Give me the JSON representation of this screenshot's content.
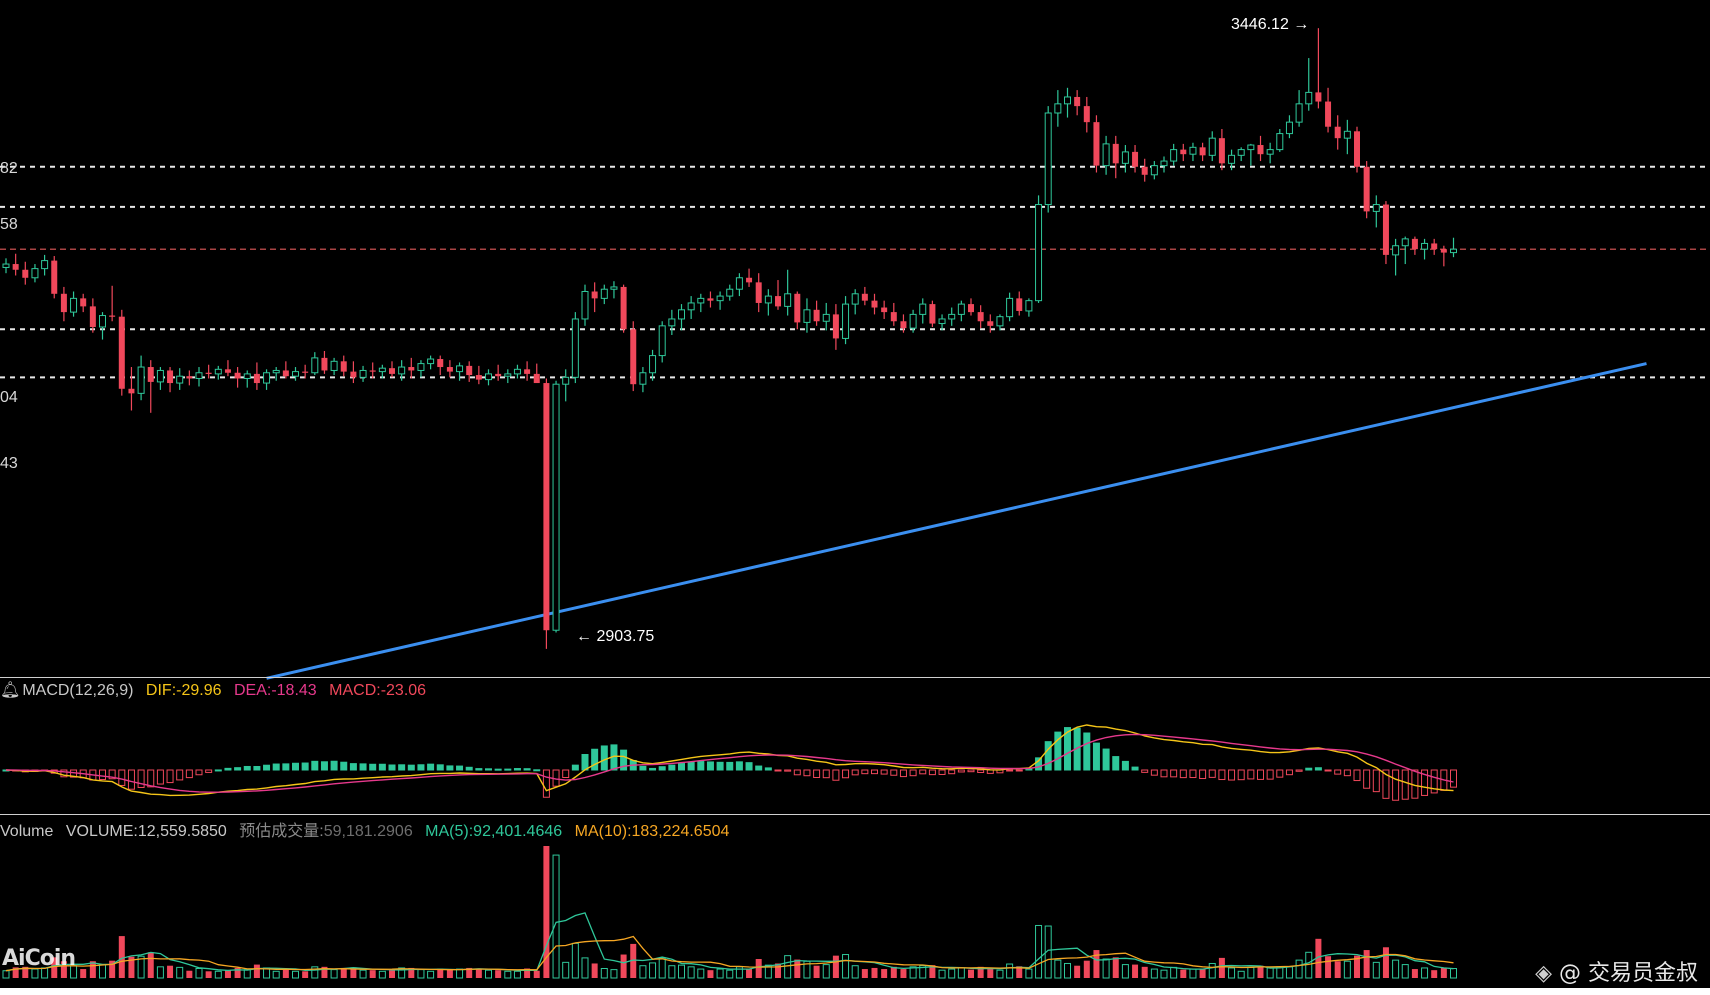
{
  "chart_data": {
    "type": "candlestick",
    "price_axis": {
      "visible_tick_labels": [
        "82",
        "58",
        "04",
        "43"
      ],
      "levels_white_dashed": [
        3325,
        3290,
        3183,
        3141
      ],
      "level_red_dashed": 3253,
      "range": [
        2880,
        3462
      ]
    },
    "annotations": [
      {
        "text": "3446.12 →",
        "price": 3446.12,
        "candle_index": 130
      },
      {
        "text": "← 2903.75",
        "price": 2903.75,
        "candle_index": 56
      }
    ],
    "trendline": {
      "color": "#3b8ff0",
      "from": {
        "candle_index": 27,
        "price": 2878
      },
      "to": {
        "candle_index": 170,
        "price": 3153
      }
    },
    "candles": [
      [
        3237,
        3245,
        3232,
        3240
      ],
      [
        3240,
        3249,
        3230,
        3235
      ],
      [
        3235,
        3242,
        3222,
        3228
      ],
      [
        3228,
        3240,
        3224,
        3236
      ],
      [
        3236,
        3248,
        3230,
        3243
      ],
      [
        3243,
        3247,
        3210,
        3214
      ],
      [
        3214,
        3220,
        3190,
        3198
      ],
      [
        3198,
        3216,
        3194,
        3210
      ],
      [
        3210,
        3214,
        3198,
        3203
      ],
      [
        3203,
        3210,
        3180,
        3185
      ],
      [
        3185,
        3198,
        3174,
        3195
      ],
      [
        3195,
        3221,
        3190,
        3194
      ],
      [
        3194,
        3200,
        3125,
        3131
      ],
      [
        3131,
        3150,
        3112,
        3127
      ],
      [
        3127,
        3160,
        3121,
        3150
      ],
      [
        3150,
        3156,
        3110,
        3137
      ],
      [
        3137,
        3150,
        3130,
        3147
      ],
      [
        3147,
        3150,
        3128,
        3136
      ],
      [
        3136,
        3149,
        3130,
        3142
      ],
      [
        3142,
        3147,
        3134,
        3140
      ],
      [
        3140,
        3150,
        3133,
        3145
      ],
      [
        3145,
        3152,
        3140,
        3144
      ],
      [
        3144,
        3151,
        3139,
        3148
      ],
      [
        3148,
        3156,
        3142,
        3145
      ],
      [
        3145,
        3150,
        3132,
        3140
      ],
      [
        3140,
        3147,
        3132,
        3144
      ],
      [
        3144,
        3154,
        3130,
        3136
      ],
      [
        3136,
        3148,
        3130,
        3145
      ],
      [
        3145,
        3150,
        3138,
        3147
      ],
      [
        3147,
        3155,
        3140,
        3142
      ],
      [
        3142,
        3150,
        3138,
        3146
      ],
      [
        3146,
        3152,
        3140,
        3145
      ],
      [
        3145,
        3163,
        3143,
        3158
      ],
      [
        3158,
        3164,
        3144,
        3147
      ],
      [
        3147,
        3158,
        3143,
        3155
      ],
      [
        3155,
        3160,
        3142,
        3146
      ],
      [
        3146,
        3155,
        3136,
        3141
      ],
      [
        3141,
        3151,
        3137,
        3147
      ],
      [
        3147,
        3154,
        3140,
        3146
      ],
      [
        3146,
        3152,
        3140,
        3149
      ],
      [
        3149,
        3155,
        3141,
        3144
      ],
      [
        3144,
        3156,
        3138,
        3150
      ],
      [
        3150,
        3158,
        3140,
        3147
      ],
      [
        3147,
        3156,
        3141,
        3153
      ],
      [
        3153,
        3160,
        3148,
        3157
      ],
      [
        3157,
        3160,
        3143,
        3150
      ],
      [
        3150,
        3156,
        3141,
        3146
      ],
      [
        3146,
        3154,
        3138,
        3151
      ],
      [
        3151,
        3155,
        3137,
        3143
      ],
      [
        3143,
        3151,
        3135,
        3139
      ],
      [
        3139,
        3148,
        3134,
        3144
      ],
      [
        3144,
        3152,
        3138,
        3142
      ],
      [
        3142,
        3148,
        3136,
        3144
      ],
      [
        3144,
        3152,
        3140,
        3148
      ],
      [
        3148,
        3155,
        3138,
        3144
      ],
      [
        3144,
        3153,
        3140,
        3136
      ],
      [
        3136,
        3140,
        2903.75,
        2920
      ],
      [
        2920,
        3138,
        2918,
        3135
      ],
      [
        3135,
        3148,
        3120,
        3141
      ],
      [
        3141,
        3198,
        3136,
        3192
      ],
      [
        3192,
        3222,
        3186,
        3216
      ],
      [
        3216,
        3224,
        3198,
        3210
      ],
      [
        3210,
        3222,
        3205,
        3218
      ],
      [
        3218,
        3225,
        3210,
        3220
      ],
      [
        3220,
        3222,
        3180,
        3183
      ],
      [
        3183,
        3190,
        3129,
        3135
      ],
      [
        3135,
        3150,
        3128,
        3145
      ],
      [
        3145,
        3165,
        3138,
        3160
      ],
      [
        3160,
        3190,
        3154,
        3186
      ],
      [
        3186,
        3200,
        3178,
        3192
      ],
      [
        3192,
        3205,
        3182,
        3200
      ],
      [
        3200,
        3212,
        3192,
        3206
      ],
      [
        3206,
        3214,
        3198,
        3210
      ],
      [
        3210,
        3216,
        3202,
        3208
      ],
      [
        3208,
        3216,
        3200,
        3212
      ],
      [
        3212,
        3222,
        3208,
        3218
      ],
      [
        3218,
        3232,
        3212,
        3228
      ],
      [
        3228,
        3236,
        3220,
        3224
      ],
      [
        3224,
        3232,
        3198,
        3206
      ],
      [
        3206,
        3218,
        3195,
        3212
      ],
      [
        3212,
        3226,
        3200,
        3203
      ],
      [
        3203,
        3235,
        3195,
        3214
      ],
      [
        3214,
        3216,
        3183,
        3189
      ],
      [
        3189,
        3210,
        3180,
        3200
      ],
      [
        3200,
        3208,
        3186,
        3190
      ],
      [
        3190,
        3206,
        3182,
        3196
      ],
      [
        3196,
        3205,
        3165,
        3175
      ],
      [
        3175,
        3212,
        3170,
        3205
      ],
      [
        3205,
        3218,
        3196,
        3214
      ],
      [
        3214,
        3220,
        3204,
        3208
      ],
      [
        3208,
        3214,
        3196,
        3202
      ],
      [
        3202,
        3208,
        3192,
        3198
      ],
      [
        3198,
        3206,
        3186,
        3190
      ],
      [
        3190,
        3196,
        3180,
        3184
      ],
      [
        3184,
        3200,
        3180,
        3196
      ],
      [
        3196,
        3210,
        3188,
        3205
      ],
      [
        3205,
        3208,
        3185,
        3188
      ],
      [
        3188,
        3196,
        3182,
        3192
      ],
      [
        3192,
        3202,
        3186,
        3196
      ],
      [
        3196,
        3208,
        3190,
        3205
      ],
      [
        3205,
        3210,
        3195,
        3198
      ],
      [
        3198,
        3204,
        3184,
        3190
      ],
      [
        3190,
        3196,
        3180,
        3186
      ],
      [
        3186,
        3196,
        3182,
        3194
      ],
      [
        3194,
        3215,
        3190,
        3210
      ],
      [
        3210,
        3216,
        3195,
        3199
      ],
      [
        3199,
        3210,
        3194,
        3208
      ],
      [
        3208,
        3300,
        3206,
        3292
      ],
      [
        3292,
        3378,
        3285,
        3372
      ],
      [
        3372,
        3392,
        3360,
        3380
      ],
      [
        3380,
        3394,
        3368,
        3386
      ],
      [
        3386,
        3392,
        3370,
        3378
      ],
      [
        3378,
        3386,
        3355,
        3364
      ],
      [
        3364,
        3370,
        3320,
        3326
      ],
      [
        3326,
        3352,
        3318,
        3345
      ],
      [
        3345,
        3352,
        3315,
        3328
      ],
      [
        3328,
        3344,
        3320,
        3338
      ],
      [
        3338,
        3344,
        3320,
        3325
      ],
      [
        3325,
        3332,
        3312,
        3318
      ],
      [
        3318,
        3330,
        3314,
        3326
      ],
      [
        3326,
        3334,
        3320,
        3330
      ],
      [
        3330,
        3345,
        3326,
        3340
      ],
      [
        3340,
        3345,
        3330,
        3336
      ],
      [
        3336,
        3346,
        3330,
        3342
      ],
      [
        3342,
        3346,
        3330,
        3335
      ],
      [
        3335,
        3356,
        3330,
        3350
      ],
      [
        3350,
        3358,
        3322,
        3328
      ],
      [
        3328,
        3340,
        3322,
        3335
      ],
      [
        3335,
        3342,
        3330,
        3340
      ],
      [
        3340,
        3345,
        3326,
        3344
      ],
      [
        3344,
        3352,
        3330,
        3336
      ],
      [
        3336,
        3346,
        3328,
        3340
      ],
      [
        3340,
        3358,
        3338,
        3354
      ],
      [
        3354,
        3370,
        3350,
        3364
      ],
      [
        3364,
        3392,
        3360,
        3380
      ],
      [
        3380,
        3420,
        3374,
        3390
      ],
      [
        3390,
        3446.12,
        3376,
        3382
      ],
      [
        3382,
        3394,
        3355,
        3360
      ],
      [
        3360,
        3370,
        3340,
        3350
      ],
      [
        3350,
        3366,
        3336,
        3356
      ],
      [
        3356,
        3360,
        3320,
        3325
      ],
      [
        3325,
        3330,
        3280,
        3286
      ],
      [
        3286,
        3300,
        3272,
        3292
      ],
      [
        3292,
        3295,
        3240,
        3248
      ],
      [
        3248,
        3262,
        3230,
        3256
      ],
      [
        3256,
        3264,
        3240,
        3262
      ],
      [
        3262,
        3264,
        3248,
        3253
      ],
      [
        3253,
        3262,
        3244,
        3258
      ],
      [
        3258,
        3262,
        3248,
        3253
      ],
      [
        3253,
        3256,
        3238,
        3250
      ],
      [
        3250,
        3263,
        3246,
        3253
      ]
    ],
    "macd": {
      "label": "MACD(12,26,9)",
      "dif_label": "DIF:-29.96",
      "dea_label": "DEA:-18.43",
      "macd_label": "MACD:-23.06",
      "colors": {
        "dif": "#f5c518",
        "dea": "#e6398c",
        "up": "#2fc79a",
        "down": "#f0485b"
      }
    },
    "volume": {
      "label": "Volume",
      "volume_label": "VOLUME:12,559.5850",
      "est_label": "预估成交量:",
      "est_value": "59,181.2906",
      "ma5_label": "MA(5):92,401.4646",
      "ma10_label": "MA(10):183,224.6504"
    },
    "colors": {
      "up": "#2fc79a",
      "down": "#f0485b",
      "grid": "#e8e8e8",
      "red_level": "#e25b5b"
    }
  },
  "branding": {
    "logo": "AiCoin",
    "watermark": "@ 交易员金叔"
  }
}
